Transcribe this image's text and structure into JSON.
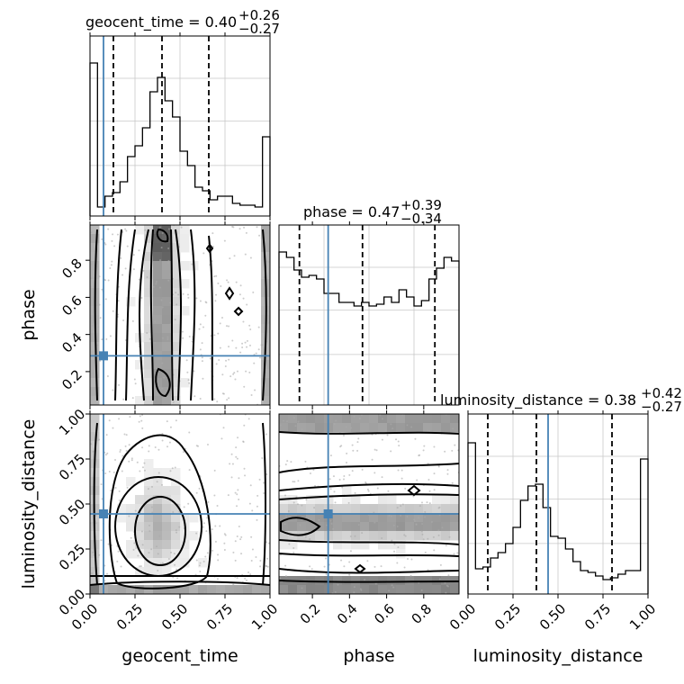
{
  "colors": {
    "truth": "#4682b4",
    "hist": "#000000",
    "grid": "#c8c8c8",
    "quantile": "#000000",
    "points": "#aaaaaa"
  },
  "chart_data": {
    "type": "corner",
    "parameters": [
      "geocent_time",
      "phase",
      "luminosity_distance"
    ],
    "titles": [
      {
        "param": "geocent_time",
        "text": "geocent_time = 0.40",
        "median": 0.4,
        "plus": "+0.26",
        "minus": "−0.27"
      },
      {
        "param": "phase",
        "text": "phase = 0.47",
        "median": 0.47,
        "plus": "+0.39",
        "minus": "−0.34"
      },
      {
        "param": "luminosity_distance",
        "text": "luminosity_distance = 0.38",
        "median": 0.38,
        "plus": "+0.42",
        "minus": "−0.27"
      }
    ],
    "truths": {
      "geocent_time": 0.075,
      "phase": 0.285,
      "luminosity_distance": 0.445
    },
    "ranges": {
      "geocent_time": [
        0,
        1
      ],
      "phase": [
        0.02,
        0.99
      ],
      "luminosity_distance": [
        0,
        1
      ]
    },
    "ticks": {
      "geocent_time": [
        "0.00",
        "0.25",
        "0.50",
        "0.75",
        "1.00"
      ],
      "phase": [
        "0.2",
        "0.4",
        "0.6",
        "0.8"
      ],
      "luminosity_distance": [
        "0.00",
        "0.25",
        "0.50",
        "0.75",
        "1.00"
      ]
    },
    "quantiles": {
      "geocent_time": [
        0.13,
        0.4,
        0.66
      ],
      "phase": [
        0.13,
        0.47,
        0.86
      ],
      "luminosity_distance": [
        0.11,
        0.38,
        0.8
      ]
    },
    "hist1d": {
      "geocent_time": [
        0.85,
        0.05,
        0.11,
        0.13,
        0.19,
        0.33,
        0.39,
        0.49,
        0.69,
        0.77,
        0.64,
        0.55,
        0.36,
        0.28,
        0.16,
        0.14,
        0.09,
        0.11,
        0.11,
        0.07,
        0.06,
        0.06,
        0.05,
        0.44
      ],
      "phase": [
        0.85,
        0.82,
        0.75,
        0.71,
        0.72,
        0.7,
        0.62,
        0.62,
        0.57,
        0.57,
        0.55,
        0.57,
        0.55,
        0.56,
        0.6,
        0.57,
        0.64,
        0.6,
        0.55,
        0.58,
        0.7,
        0.76,
        0.82,
        0.8
      ],
      "luminosity_distance": [
        0.84,
        0.14,
        0.15,
        0.2,
        0.23,
        0.28,
        0.37,
        0.52,
        0.6,
        0.61,
        0.48,
        0.32,
        0.31,
        0.25,
        0.18,
        0.13,
        0.12,
        0.1,
        0.08,
        0.09,
        0.11,
        0.13,
        0.13,
        0.75
      ]
    }
  }
}
